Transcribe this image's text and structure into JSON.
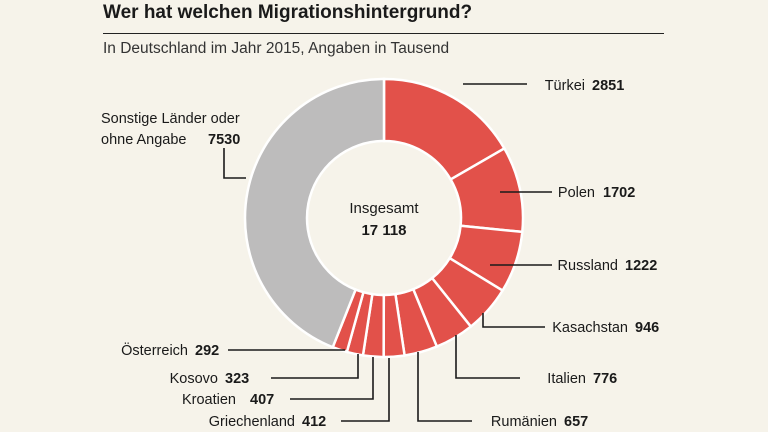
{
  "title": "Wer hat welchen Migrationshintergrund?",
  "subtitle": "In Deutschland im Jahr 2015, Angaben in Tausend",
  "colors": {
    "highlight": "#e2514a",
    "other": "#bdbcbc",
    "background": "#f6f3ea"
  },
  "chart_data": {
    "type": "pie",
    "title": "Wer hat welchen Migrationshintergrund?",
    "subtitle": "In Deutschland im Jahr 2015, Angaben in Tausend",
    "center_label": "Insgesamt",
    "total": 17118,
    "total_display": "17 118",
    "slices": [
      {
        "label": "Türkei",
        "value": 2851
      },
      {
        "label": "Polen",
        "value": 1702
      },
      {
        "label": "Russland",
        "value": 1222
      },
      {
        "label": "Kasachstan",
        "value": 946
      },
      {
        "label": "Italien",
        "value": 776
      },
      {
        "label": "Rumänien",
        "value": 657
      },
      {
        "label": "Griechenland",
        "value": 412
      },
      {
        "label": "Kroatien",
        "value": 407
      },
      {
        "label": "Kosovo",
        "value": 323
      },
      {
        "label": "Österreich",
        "value": 292
      },
      {
        "label": "Sonstige Länder oder ohne Angabe",
        "label_lines": [
          "Sonstige Länder oder",
          "ohne Angabe"
        ],
        "value": 7530
      }
    ]
  }
}
